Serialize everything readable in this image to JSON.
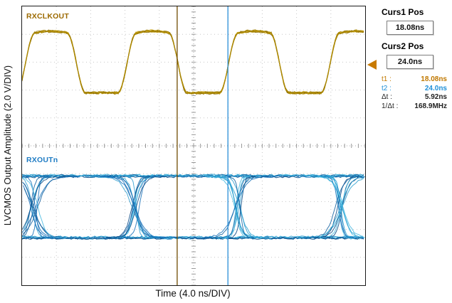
{
  "axes": {
    "x_label": "Time (4.0 ns/DIV)",
    "y_label": "LVCMOS Output Amplitude (2.0 V/DIV)"
  },
  "traces": {
    "clock_label": "RXCLKOUT",
    "data_label": "RXOUTn"
  },
  "readouts": {
    "curs1_title": "Curs1 Pos",
    "curs1_value": "18.08ns",
    "curs2_title": "Curs2 Pos",
    "curs2_value": "24.0ns",
    "measurements": [
      {
        "label": "t1 :",
        "value": "18.08ns",
        "color": "#c07800"
      },
      {
        "label": "t2 :",
        "value": "24.0ns",
        "color": "#2090d8"
      },
      {
        "label": "Δt :",
        "value": "5.92ns",
        "color": "#222222"
      },
      {
        "label": "1/Δt :",
        "value": "168.9MHz",
        "color": "#222222"
      }
    ]
  },
  "marker": {
    "arrow_icon_color": "#c87a00"
  },
  "chart_data": {
    "type": "line",
    "title": "",
    "xlabel": "Time (4.0 ns/DIV)",
    "ylabel": "LVCMOS Output Amplitude (2.0 V/DIV)",
    "x_per_div_ns": 4.0,
    "y_per_div_V": 2.0,
    "grid_divisions": [
      10,
      10
    ],
    "x_range_ns": [
      0,
      40
    ],
    "series": [
      {
        "name": "RXCLKOUT",
        "kind": "clock",
        "color": "#a87c00",
        "period_ns": 11.84,
        "frequency_MHz": 84.45,
        "duty_cycle": 0.5,
        "first_rise_ns": 0.41,
        "high_div_from_top": 0.95,
        "low_div_from_top": 3.1
      },
      {
        "name": "RXOUTn",
        "kind": "eye",
        "color": "#1878c0",
        "transition_spacing_ns": 11.84,
        "first_crossing_ns": 1.41,
        "high_div_from_top": 6.1,
        "low_div_from_top": 8.3
      }
    ],
    "cursors": [
      {
        "name": "cursor-1",
        "pos_ns": 18.08,
        "color": "#6e4a00"
      },
      {
        "name": "cursor-2",
        "pos_ns": 24.0,
        "color": "#2b8fd8"
      }
    ],
    "measurements": {
      "t1_ns": 18.08,
      "t2_ns": 24.0,
      "dt_ns": 5.92,
      "one_over_dt_MHz": 168.9
    }
  }
}
